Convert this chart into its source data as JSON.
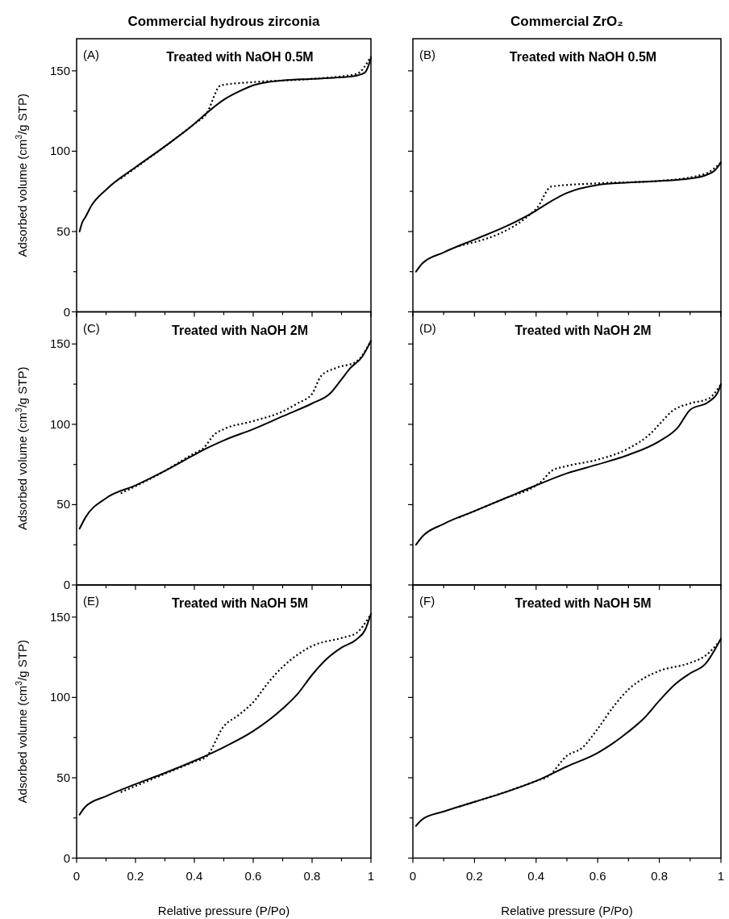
{
  "chart_data": [
    {
      "type": "line",
      "title": "Commercial hydrous zirconia",
      "subtitle": "Treated with NaOH 0.5M",
      "annotations": [
        "(A)"
      ],
      "ylabel": "Adsorbed volume (cm$^{3}$/g STP)",
      "xlim": [
        0,
        1
      ],
      "ylim": [
        0,
        170
      ],
      "xticks": [
        0,
        {
          "value": 0.1,
          "label": null
        },
        0.2,
        {
          "value": 0.3,
          "label": null
        },
        0.4,
        {
          "value": 0.5,
          "label": null
        },
        0.6,
        {
          "value": 0.7,
          "label": null
        },
        0.8,
        {
          "value": 0.9,
          "label": null
        },
        1
      ],
      "yticks": [
        0,
        {
          "value": 25,
          "label": null
        },
        50,
        {
          "value": 75,
          "label": null
        },
        100,
        {
          "value": 125,
          "label": null
        },
        150
      ],
      "tick_labels": "y",
      "series": [
        {
          "color": "#000000",
          "line_style": "solid",
          "x": [
            0.01,
            0.02,
            0.03,
            0.05,
            0.1,
            0.2,
            0.3,
            0.4,
            0.45,
            0.5,
            0.55,
            0.6,
            0.65,
            0.7,
            0.8,
            0.9,
            0.95,
            0.98,
            1.0
          ],
          "values": [
            50,
            56,
            59,
            66,
            76,
            90,
            103,
            117,
            125,
            132,
            137,
            141,
            143,
            144,
            145,
            146,
            147,
            149,
            158
          ]
        },
        {
          "color": "#000000",
          "line_style": "dotted",
          "x": [
            0.15,
            0.3,
            0.4,
            0.44,
            0.49,
            0.6,
            0.8,
            0.95,
            1.0
          ],
          "values": [
            83,
            103,
            117,
            123,
            141,
            143,
            145,
            148,
            159
          ]
        }
      ]
    },
    {
      "type": "line",
      "title": "Commercial ZrO₂",
      "subtitle": "Treated with NaOH 0.5M",
      "annotations": [
        "(B)"
      ],
      "xlim": [
        0,
        1
      ],
      "ylim": [
        0,
        170
      ],
      "xticks": [
        0,
        {
          "value": 0.1,
          "label": null
        },
        0.2,
        {
          "value": 0.3,
          "label": null
        },
        0.4,
        {
          "value": 0.5,
          "label": null
        },
        0.6,
        {
          "value": 0.7,
          "label": null
        },
        0.8,
        {
          "value": 0.9,
          "label": null
        },
        1
      ],
      "yticks": [
        0,
        {
          "value": 25,
          "label": null
        },
        50,
        {
          "value": 75,
          "label": null
        },
        100,
        {
          "value": 125,
          "label": null
        },
        150
      ],
      "tick_labels": false,
      "series": [
        {
          "color": "#000000",
          "line_style": "solid",
          "x": [
            0.01,
            0.03,
            0.1,
            0.2,
            0.3,
            0.4,
            0.45,
            0.5,
            0.6,
            0.7,
            0.8,
            0.9,
            0.95,
            0.98,
            1.0
          ],
          "values": [
            25,
            30,
            37,
            45,
            53,
            63,
            69,
            74,
            79,
            80.5,
            81.5,
            83,
            85,
            88,
            93
          ]
        },
        {
          "color": "#000000",
          "line_style": "dotted",
          "x": [
            0.15,
            0.4,
            0.45,
            0.6,
            0.8,
            0.95,
            1.0
          ],
          "values": [
            41,
            64,
            78,
            80,
            81.5,
            86,
            93
          ]
        }
      ]
    },
    {
      "type": "line",
      "subtitle": "Treated with NaOH  2M",
      "annotations": [
        "(C)"
      ],
      "ylabel": "Adsorbed volume (cm$^{3}$/g STP)",
      "xlim": [
        0,
        1
      ],
      "ylim": [
        0,
        170
      ],
      "xticks": [
        0,
        {
          "value": 0.1,
          "label": null
        },
        0.2,
        {
          "value": 0.3,
          "label": null
        },
        0.4,
        {
          "value": 0.5,
          "label": null
        },
        0.6,
        {
          "value": 0.7,
          "label": null
        },
        0.8,
        {
          "value": 0.9,
          "label": null
        },
        1
      ],
      "yticks": [
        0,
        {
          "value": 25,
          "label": null
        },
        50,
        {
          "value": 75,
          "label": null
        },
        100,
        {
          "value": 125,
          "label": null
        },
        150
      ],
      "tick_labels": "y",
      "series": [
        {
          "color": "#000000",
          "line_style": "solid",
          "x": [
            0.01,
            0.03,
            0.1,
            0.2,
            0.3,
            0.4,
            0.43,
            0.5,
            0.6,
            0.7,
            0.8,
            0.86,
            0.9,
            0.93,
            0.97,
            1.0
          ],
          "values": [
            35,
            42,
            54,
            62,
            71,
            81,
            84,
            90,
            97,
            105,
            113,
            119,
            128,
            135,
            142,
            152
          ]
        },
        {
          "color": "#000000",
          "line_style": "dotted",
          "x": [
            0.15,
            0.3,
            0.4,
            0.43,
            0.47,
            0.5,
            0.6,
            0.7,
            0.75,
            0.8,
            0.83,
            0.88,
            0.95,
            1.0
          ],
          "values": [
            57,
            71,
            82,
            85,
            94,
            97,
            102,
            108,
            113,
            119,
            130,
            135,
            139,
            152
          ]
        }
      ]
    },
    {
      "type": "line",
      "subtitle": "Treated with NaOH  2M",
      "annotations": [
        "(D)"
      ],
      "xlim": [
        0,
        1
      ],
      "ylim": [
        0,
        170
      ],
      "xticks": [
        0,
        {
          "value": 0.1,
          "label": null
        },
        0.2,
        {
          "value": 0.3,
          "label": null
        },
        0.4,
        {
          "value": 0.5,
          "label": null
        },
        0.6,
        {
          "value": 0.7,
          "label": null
        },
        0.8,
        {
          "value": 0.9,
          "label": null
        },
        1
      ],
      "yticks": [
        0,
        {
          "value": 25,
          "label": null
        },
        50,
        {
          "value": 75,
          "label": null
        },
        100,
        {
          "value": 125,
          "label": null
        },
        150
      ],
      "tick_labels": false,
      "series": [
        {
          "color": "#000000",
          "line_style": "solid",
          "x": [
            0.01,
            0.03,
            0.1,
            0.2,
            0.3,
            0.4,
            0.5,
            0.6,
            0.7,
            0.8,
            0.86,
            0.9,
            0.96,
            0.99,
            1.0
          ],
          "values": [
            25,
            30,
            38,
            46,
            54,
            62,
            69.5,
            75,
            81,
            89.5,
            98,
            109,
            114,
            120,
            125
          ]
        },
        {
          "color": "#000000",
          "line_style": "dotted",
          "x": [
            0.15,
            0.3,
            0.4,
            0.42,
            0.45,
            0.5,
            0.6,
            0.7,
            0.77,
            0.8,
            0.84,
            0.9,
            0.96,
            1.0
          ],
          "values": [
            42,
            54,
            62,
            65,
            71,
            74,
            78,
            85,
            94,
            100,
            108,
            113,
            116,
            125
          ]
        }
      ]
    },
    {
      "type": "line",
      "subtitle": "Treated with NaOH  5M",
      "annotations": [
        "(E)"
      ],
      "xlabel": "Relative pressure (P/Po)",
      "ylabel": "Adsorbed volume (cm$^{3}$/g STP)",
      "xlim": [
        0,
        1
      ],
      "ylim": [
        0,
        170
      ],
      "xticks": [
        0,
        {
          "value": 0.1,
          "label": null
        },
        0.2,
        {
          "value": 0.3,
          "label": null
        },
        0.4,
        {
          "value": 0.5,
          "label": null
        },
        0.6,
        {
          "value": 0.7,
          "label": null
        },
        0.8,
        {
          "value": 0.9,
          "label": null
        },
        1
      ],
      "yticks": [
        0,
        {
          "value": 25,
          "label": null
        },
        50,
        {
          "value": 75,
          "label": null
        },
        100,
        {
          "value": 125,
          "label": null
        },
        150
      ],
      "series": [
        {
          "color": "#000000",
          "line_style": "solid",
          "x": [
            0.01,
            0.03,
            0.1,
            0.2,
            0.3,
            0.4,
            0.5,
            0.6,
            0.7,
            0.75,
            0.8,
            0.85,
            0.9,
            0.95,
            0.98,
            1.0
          ],
          "values": [
            27,
            32,
            38.5,
            46,
            53,
            60.5,
            69,
            79,
            93,
            102,
            114,
            124,
            131,
            136,
            142,
            152
          ]
        },
        {
          "color": "#000000",
          "line_style": "dotted",
          "x": [
            0.15,
            0.4,
            0.44,
            0.5,
            0.55,
            0.6,
            0.65,
            0.7,
            0.75,
            0.8,
            0.9,
            0.95,
            1.0
          ],
          "values": [
            41,
            60,
            63,
            82,
            89,
            97,
            109,
            119,
            126.5,
            132,
            137,
            140,
            152
          ]
        }
      ]
    },
    {
      "type": "line",
      "subtitle": "Treated with NaOH  5M",
      "annotations": [
        "(F)"
      ],
      "xlabel": "Relative pressure (P/Po)",
      "xlim": [
        0,
        1
      ],
      "ylim": [
        0,
        170
      ],
      "xticks": [
        0,
        {
          "value": 0.1,
          "label": null
        },
        0.2,
        {
          "value": 0.3,
          "label": null
        },
        0.4,
        {
          "value": 0.5,
          "label": null
        },
        0.6,
        {
          "value": 0.7,
          "label": null
        },
        0.8,
        {
          "value": 0.9,
          "label": null
        },
        1
      ],
      "yticks": [
        0,
        {
          "value": 25,
          "label": null
        },
        50,
        {
          "value": 75,
          "label": null
        },
        100,
        {
          "value": 125,
          "label": null
        },
        150
      ],
      "tick_labels": "x",
      "series": [
        {
          "color": "#000000",
          "line_style": "solid",
          "x": [
            0.01,
            0.03,
            0.1,
            0.2,
            0.3,
            0.4,
            0.5,
            0.6,
            0.7,
            0.75,
            0.8,
            0.85,
            0.9,
            0.95,
            1.0
          ],
          "values": [
            20,
            24,
            29,
            35,
            41,
            48,
            57,
            65.5,
            78.7,
            87,
            98,
            108,
            115,
            121,
            136.6
          ]
        },
        {
          "color": "#000000",
          "line_style": "dotted",
          "x": [
            0.15,
            0.4,
            0.44,
            0.5,
            0.55,
            0.6,
            0.65,
            0.7,
            0.75,
            0.8,
            0.9,
            0.95,
            1.0
          ],
          "values": [
            32,
            48,
            51,
            63.7,
            68.7,
            80.5,
            94,
            105,
            112,
            116.5,
            121.5,
            126,
            136
          ]
        }
      ]
    }
  ]
}
